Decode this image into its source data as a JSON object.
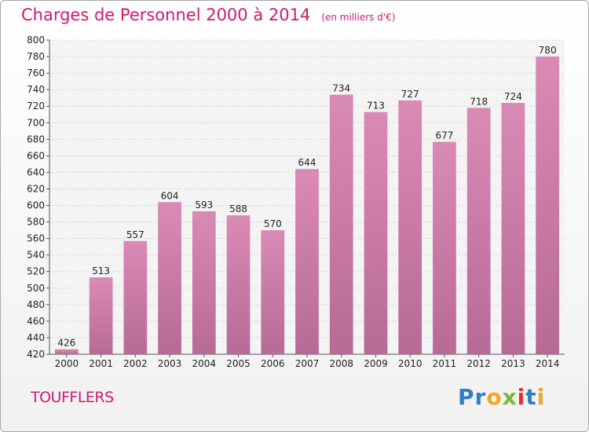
{
  "chart_data": {
    "type": "bar",
    "title": "Charges de Personnel 2000 à 2014",
    "unit_note": "(en milliers d'€)",
    "categories": [
      "2000",
      "2001",
      "2002",
      "2003",
      "2004",
      "2005",
      "2006",
      "2007",
      "2008",
      "2009",
      "2010",
      "2011",
      "2012",
      "2013",
      "2014"
    ],
    "values": [
      426,
      513,
      557,
      604,
      593,
      588,
      570,
      644,
      734,
      713,
      727,
      677,
      718,
      724,
      780
    ],
    "ylim": [
      420,
      800
    ],
    "yticks": [
      420,
      440,
      460,
      480,
      500,
      520,
      540,
      560,
      580,
      600,
      620,
      640,
      660,
      680,
      700,
      720,
      740,
      760,
      780,
      800
    ],
    "grid": true,
    "bar_color": "#d98ab5",
    "bar_color_dark": "#b86a97",
    "xlabel": "",
    "ylabel": ""
  },
  "footer": {
    "commune": "TOUFFLERS",
    "logo_letters": [
      "P",
      "r",
      "o",
      "x",
      "i",
      "t",
      "i"
    ],
    "logo_colors": [
      "#2f7fc1",
      "#2f7fc1",
      "#f5a623",
      "#7cb63a",
      "#e0342b",
      "#2f7fc1",
      "#f5a623"
    ]
  }
}
